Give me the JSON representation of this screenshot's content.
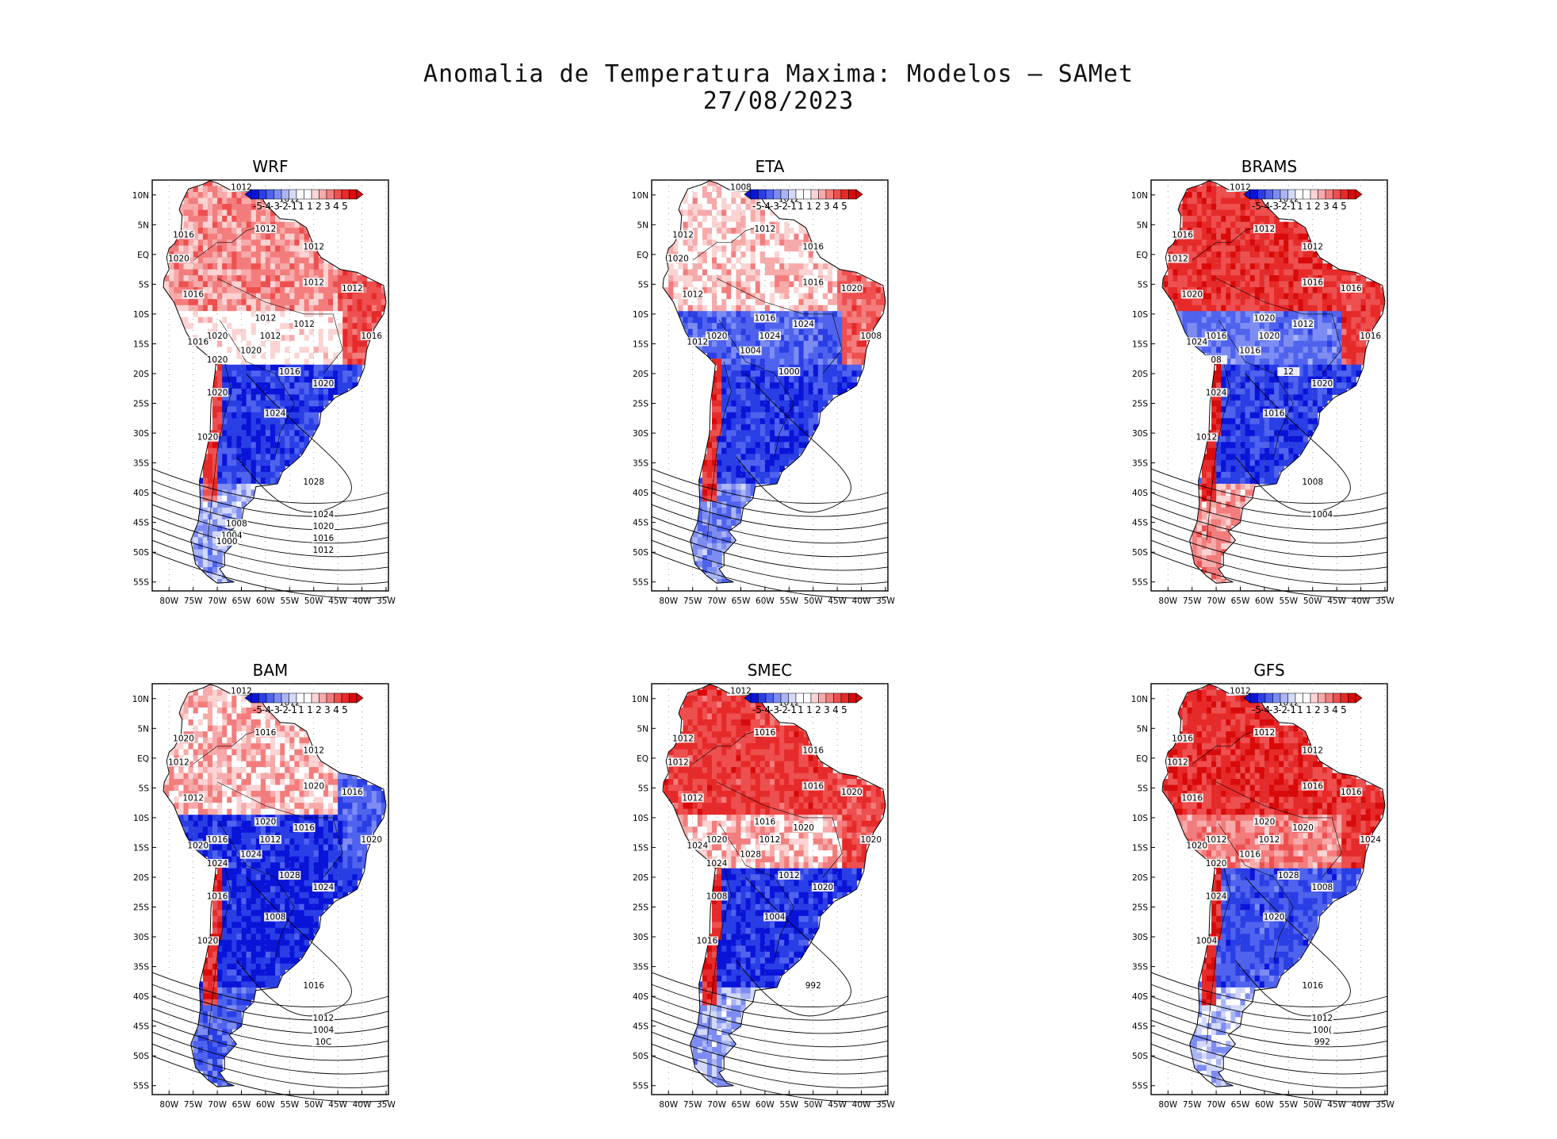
{
  "figure": {
    "title_line1": "Anomalia de Temperatura Maxima: Modelos — SAMet",
    "title_line2": "27/08/2023"
  },
  "axes": {
    "lat_labels": [
      "10N",
      "5N",
      "EQ",
      "5S",
      "10S",
      "15S",
      "20S",
      "25S",
      "30S",
      "35S",
      "40S",
      "45S",
      "50S",
      "55S"
    ],
    "lon_labels": [
      "80W",
      "75W",
      "70W",
      "65W",
      "60W",
      "55W",
      "50W",
      "45W",
      "40W",
      "35W"
    ]
  },
  "colorbar": {
    "labels": [
      "-5",
      "-4",
      "-3",
      "-2",
      "-1",
      "1",
      "1",
      "2",
      "3",
      "4",
      "5"
    ],
    "colors": [
      "#0a14d8",
      "#2a3ee6",
      "#4f63ee",
      "#7d8cf3",
      "#aab5f7",
      "#d3d9fb",
      "#ffffff",
      "#ffffff",
      "#fbd3d3",
      "#f7aaaa",
      "#f37d7d",
      "#ee4f4f",
      "#e62a2a",
      "#d80a0a"
    ]
  },
  "panels": [
    {
      "name": "WRF",
      "isobars": [
        "1012",
        "1012",
        "1012",
        "1016",
        "1012",
        "1020",
        "1016",
        "1020",
        "1012",
        "1012",
        "1012",
        "1012",
        "1012",
        "1016",
        "1016",
        "1020",
        "1016",
        "1020",
        "1020",
        "1020",
        "1024",
        "1020",
        "1028",
        "1024",
        "1020",
        "1016",
        "1012",
        "1008",
        "1004",
        "1000"
      ],
      "anomaly": {
        "north": 2.2,
        "northeast": 3.5,
        "central": 0.5,
        "south": -4.5,
        "patagonia": -2.0,
        "andes": 4.0
      }
    },
    {
      "name": "ETA",
      "isobars": [
        "1008",
        "1012",
        "1012",
        "1012",
        "1016",
        "1020",
        "1012",
        "1020",
        "1024",
        "1016",
        "1024",
        "1020",
        "1016",
        "1012",
        "1008",
        "1004",
        "1000"
      ],
      "anomaly": {
        "north": 1.2,
        "northeast": 3.0,
        "central": -3.5,
        "south": -4.5,
        "patagonia": -2.5,
        "andes": 4.5
      }
    },
    {
      "name": "BRAMS",
      "isobars": [
        "1012",
        "1012",
        "1012",
        "1016",
        "1012",
        "1012",
        "1020",
        "1016",
        "1020",
        "1016",
        "1012",
        "1016",
        "1020",
        "1024",
        "1016",
        "1016",
        "12",
        "08",
        "1024",
        "1020",
        "1016",
        "1012",
        "1008",
        "1004"
      ],
      "anomaly": {
        "north": 4.2,
        "northeast": 4.0,
        "central": -3.0,
        "south": -4.5,
        "patagonia": 2.0,
        "andes": 4.8
      }
    },
    {
      "name": "BAM",
      "isobars": [
        "1012",
        "1012",
        "1016",
        "1020",
        "1012",
        "1012",
        "1012",
        "1016",
        "1012",
        "1020",
        "1016",
        "1016",
        "1020",
        "1020",
        "1020",
        "1024",
        "1028",
        "1024",
        "1016",
        "1024",
        "1008",
        "1020",
        "1016",
        "1012",
        "1004",
        "10C"
      ],
      "anomaly": {
        "north": 1.5,
        "northeast": -3.5,
        "central": -4.8,
        "south": -5.0,
        "patagonia": -3.5,
        "andes": 4.5
      }
    },
    {
      "name": "SMEC",
      "isobars": [
        "1012",
        "1012",
        "1016",
        "1012",
        "1016",
        "1012",
        "1012",
        "1020",
        "1012",
        "1016",
        "1020",
        "1020",
        "1016",
        "1024",
        "1020",
        "1028",
        "1012",
        "1024",
        "1008",
        "1020",
        "1004",
        "1016",
        "992"
      ],
      "anomaly": {
        "north": 4.0,
        "northeast": 3.8,
        "central": 1.5,
        "south": -4.8,
        "patagonia": -2.0,
        "andes": 4.5
      }
    },
    {
      "name": "GFS",
      "isobars": [
        "1012",
        "1012",
        "1012",
        "1016",
        "1012",
        "1012",
        "1016",
        "1012",
        "1012",
        "1016",
        "1020",
        "1016",
        "1020",
        "1020",
        "1024",
        "1016",
        "1028",
        "1020",
        "1024",
        "1008",
        "1020",
        "1004",
        "1016",
        "1012",
        "100(",
        "992"
      ],
      "anomaly": {
        "north": 4.5,
        "northeast": 4.2,
        "central": 2.5,
        "south": -4.0,
        "patagonia": -1.5,
        "andes": 4.8
      }
    }
  ]
}
